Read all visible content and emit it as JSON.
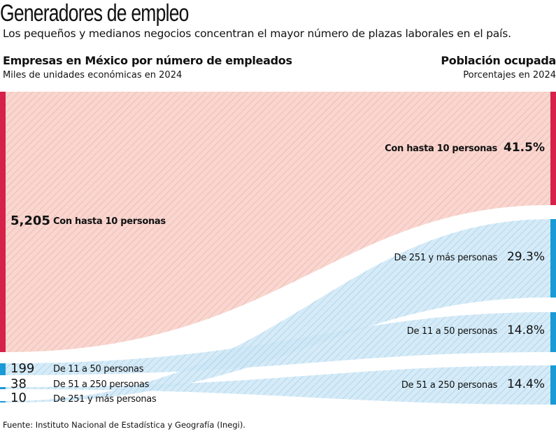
{
  "title": "Generadores de empleo",
  "subtitle": "Los pequeños y medianos negocios concentran el mayor número de plazas laborales en el país.",
  "left": {
    "heading": "Empresas en México por número de empleados",
    "subheading": "Miles de unidades económicas en 2024",
    "nodes": [
      {
        "value": "5,205",
        "label": "Con hasta 10 personas"
      },
      {
        "value": "199",
        "label": "De 11 a 50 personas"
      },
      {
        "value": "38",
        "label": "De 51 a 250 personas"
      },
      {
        "value": "10",
        "label": "De 251 y más personas"
      }
    ]
  },
  "right": {
    "heading": "Población ocupada",
    "subheading": "Porcentajes en 2024",
    "nodes": [
      {
        "value": "41.5%",
        "label": "Con hasta 10 personas"
      },
      {
        "value": "29.3%",
        "label": "De 251 y más personas"
      },
      {
        "value": "14.8%",
        "label": "De 11 a 50 personas"
      },
      {
        "value": "14.4%",
        "label": "De 51 a 250 personas"
      }
    ]
  },
  "source": "Fuente: Instituto Nacional de Estadística y Geografía (Inegi).",
  "colors": {
    "red": "#d6214a",
    "red_fill": "#f9d3cc",
    "blue": "#1a9ad6",
    "blue_fill": "#cfe8f6"
  }
}
